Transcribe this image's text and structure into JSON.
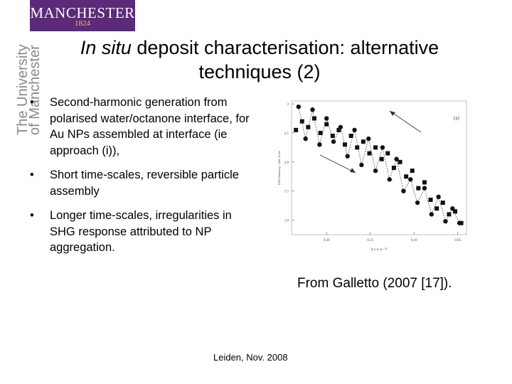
{
  "logo": {
    "name": "MANCHESTER",
    "year": "1824"
  },
  "vertical_brand": [
    "The University",
    "of Manchester"
  ],
  "title": {
    "italic": "In situ",
    "rest_line1": " deposit characterisation: alternative",
    "line2": "techniques (2)"
  },
  "bullets": [
    {
      "marker": "•",
      "text": "Second-harmonic generation from polarised water/octanone interface, for Au NPs assembled at interface (ie approach (i)),"
    },
    {
      "marker": "•",
      "text": "Short time-scales, reversible particle assembly"
    },
    {
      "marker": "•",
      "text": "Longer time-scales, irregularities in SHG response attributed to NP aggregation."
    }
  ],
  "credit": "From Galletto (2007 [17]).",
  "footer": "Leiden, Nov. 2008",
  "chart_data": {
    "type": "scatter",
    "panel_label": "(a)",
    "ylabel": "SHG Intensity / Arb. Units",
    "xlabel": "Δ o w φ / V",
    "xlim": [
      0.24,
      0.04
    ],
    "ylim": [
      0.75,
      3.05
    ],
    "x_ticks": [
      "0.20",
      "0.15",
      "0.10",
      "0.05"
    ],
    "y_ticks": [
      "3",
      "2.5",
      "2.0",
      "1.5",
      "1.0"
    ],
    "series": [
      {
        "marker": "square",
        "x": [
          0.235,
          0.228,
          0.221,
          0.214,
          0.207,
          0.2,
          0.193,
          0.186,
          0.179,
          0.172,
          0.165,
          0.158,
          0.151,
          0.144,
          0.137,
          0.13,
          0.123,
          0.116,
          0.109,
          0.102,
          0.095,
          0.088,
          0.081,
          0.074,
          0.067,
          0.06,
          0.053,
          0.046
        ],
        "y": [
          2.55,
          2.7,
          2.6,
          2.75,
          2.5,
          2.65,
          2.45,
          2.55,
          2.3,
          2.45,
          2.25,
          2.35,
          2.15,
          2.25,
          2.05,
          2.15,
          1.9,
          2.0,
          1.75,
          1.85,
          1.55,
          1.65,
          1.35,
          1.2,
          1.3,
          1.1,
          1.15,
          0.95
        ]
      },
      {
        "marker": "circle",
        "x": [
          0.232,
          0.224,
          0.216,
          0.208,
          0.2,
          0.192,
          0.184,
          0.176,
          0.168,
          0.16,
          0.152,
          0.144,
          0.136,
          0.128,
          0.12,
          0.112,
          0.104,
          0.096,
          0.088,
          0.08,
          0.072,
          0.064,
          0.056,
          0.048
        ],
        "y": [
          2.95,
          2.4,
          2.9,
          2.3,
          2.75,
          2.35,
          2.6,
          2.1,
          2.55,
          1.95,
          2.4,
          1.85,
          2.25,
          1.7,
          2.05,
          1.5,
          1.7,
          1.3,
          1.55,
          1.1,
          1.4,
          0.98,
          1.2,
          0.95
        ]
      }
    ]
  }
}
